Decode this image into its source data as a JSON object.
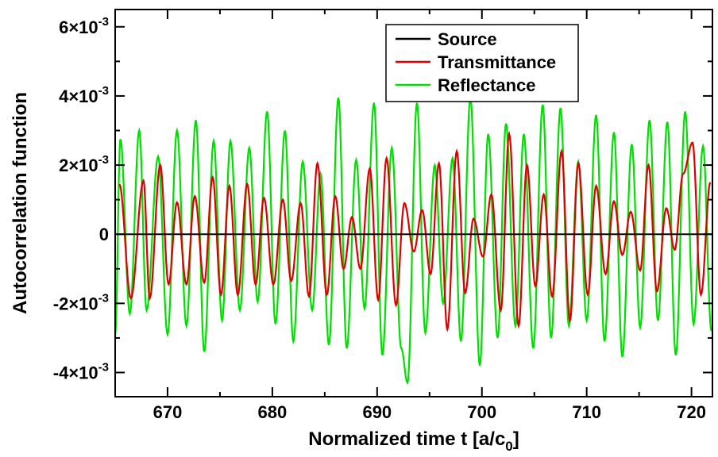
{
  "chart_data": {
    "type": "line",
    "title": "",
    "xlabel_main": "Normalized time t [a/c",
    "xlabel_sub": "0",
    "xlabel_close": "]",
    "ylabel": "Autocorrelation function",
    "xlim": [
      665,
      722
    ],
    "ylim": [
      -0.0047,
      0.0065
    ],
    "x_ticks": [
      670,
      680,
      690,
      700,
      710,
      720
    ],
    "x_tick_labels": [
      "670",
      "680",
      "690",
      "700",
      "710",
      "720"
    ],
    "y_ticks": [
      -0.004,
      -0.002,
      0,
      0.002,
      0.004,
      0.006
    ],
    "y_tick_labels": [
      {
        "mant": "-4×10",
        "exp": "-3"
      },
      {
        "mant": "-2×10",
        "exp": "-3"
      },
      {
        "mant": "0",
        "exp": ""
      },
      {
        "mant": "2×10",
        "exp": "-3"
      },
      {
        "mant": "4×10",
        "exp": "-3"
      },
      {
        "mant": "6×10",
        "exp": "-3"
      }
    ],
    "legend_position": "top-right",
    "grid": false,
    "oscillation_period": 1.64,
    "series": [
      {
        "name": "Source",
        "color": "#000000",
        "peaks": [
          [
            665.0,
            0
          ]
        ]
      },
      {
        "name": "Transmittance",
        "color": "#dd0000",
        "peaks": [
          [
            665.4,
            0.00145
          ],
          [
            666.5,
            -0.00185
          ],
          [
            667.7,
            0.00155
          ],
          [
            668.3,
            -0.00185
          ],
          [
            669.3,
            0.002
          ],
          [
            670.1,
            -0.00145
          ],
          [
            670.9,
            0.00092
          ],
          [
            671.8,
            -0.00145
          ],
          [
            672.6,
            0.0011
          ],
          [
            673.5,
            -0.0014
          ],
          [
            674.3,
            0.00165
          ],
          [
            675.1,
            -0.00175
          ],
          [
            675.9,
            0.0014
          ],
          [
            676.7,
            -0.00175
          ],
          [
            677.6,
            0.00145
          ],
          [
            678.4,
            -0.00145
          ],
          [
            679.2,
            0.00105
          ],
          [
            680.1,
            -0.00145
          ],
          [
            681.0,
            0.001
          ],
          [
            681.8,
            -0.00135
          ],
          [
            682.7,
            0.0009
          ],
          [
            683.5,
            -0.0018
          ],
          [
            684.3,
            0.00205
          ],
          [
            685.2,
            -0.00175
          ],
          [
            686.0,
            0.0011
          ],
          [
            686.8,
            -0.001
          ],
          [
            687.6,
            0.0005
          ],
          [
            688.4,
            -0.001
          ],
          [
            689.3,
            0.0019
          ],
          [
            690.1,
            -0.0019
          ],
          [
            690.9,
            0.0022
          ],
          [
            691.8,
            -0.00205
          ],
          [
            692.6,
            0.0009
          ],
          [
            693.5,
            -0.0005
          ],
          [
            694.3,
            0.0007
          ],
          [
            695.1,
            -0.00115
          ],
          [
            695.9,
            0.00205
          ],
          [
            696.7,
            -0.00275
          ],
          [
            697.6,
            0.0024
          ],
          [
            698.4,
            -0.0017
          ],
          [
            699.2,
            0.00045
          ],
          [
            700.1,
            -0.00065
          ],
          [
            700.9,
            0.00115
          ],
          [
            701.8,
            -0.0022
          ],
          [
            702.6,
            0.0029
          ],
          [
            703.5,
            -0.00265
          ],
          [
            704.3,
            0.002
          ],
          [
            705.1,
            -0.0015
          ],
          [
            705.9,
            0.00115
          ],
          [
            706.7,
            -0.0018
          ],
          [
            707.6,
            0.0024
          ],
          [
            708.4,
            -0.0025
          ],
          [
            709.2,
            0.00205
          ],
          [
            710.1,
            -0.00175
          ],
          [
            710.9,
            0.0014
          ],
          [
            711.8,
            -0.00115
          ],
          [
            712.6,
            0.00095
          ],
          [
            713.4,
            -0.0006
          ],
          [
            714.2,
            0.00065
          ],
          [
            715.1,
            -0.00105
          ],
          [
            715.9,
            0.002
          ],
          [
            716.7,
            -0.00165
          ],
          [
            717.6,
            0.00075
          ],
          [
            718.4,
            -0.00045
          ],
          [
            719.2,
            0.00175
          ],
          [
            720.1,
            0.00265
          ],
          [
            720.9,
            -0.00175
          ],
          [
            721.8,
            0.0015
          ]
        ]
      },
      {
        "name": "Reflectance",
        "color": "#00e000",
        "peaks": [
          [
            665.0,
            -0.0029
          ],
          [
            665.5,
            0.00275
          ],
          [
            666.4,
            -0.0023
          ],
          [
            667.3,
            0.003
          ],
          [
            668.0,
            -0.0022
          ],
          [
            669.1,
            0.00225
          ],
          [
            670.0,
            -0.0029
          ],
          [
            670.9,
            0.003
          ],
          [
            671.8,
            -0.00265
          ],
          [
            672.7,
            0.0033
          ],
          [
            673.5,
            -0.0034
          ],
          [
            674.4,
            0.0027
          ],
          [
            675.2,
            -0.0025
          ],
          [
            676.0,
            0.0027
          ],
          [
            676.9,
            -0.0022
          ],
          [
            677.8,
            0.0025
          ],
          [
            678.6,
            -0.00195
          ],
          [
            679.5,
            0.00355
          ],
          [
            680.3,
            -0.0026
          ],
          [
            681.2,
            0.003
          ],
          [
            682.0,
            -0.0031
          ],
          [
            682.9,
            0.0021
          ],
          [
            683.8,
            -0.0022
          ],
          [
            684.6,
            0.00175
          ],
          [
            685.4,
            -0.0032
          ],
          [
            686.3,
            0.00395
          ],
          [
            687.1,
            -0.0033
          ],
          [
            688.0,
            0.00215
          ],
          [
            688.8,
            -0.00215
          ],
          [
            689.7,
            0.0038
          ],
          [
            690.5,
            -0.0035
          ],
          [
            691.4,
            0.0025
          ],
          [
            692.3,
            -0.0033
          ],
          [
            692.9,
            -0.0043
          ],
          [
            693.8,
            0.0038
          ],
          [
            694.6,
            -0.00285
          ],
          [
            695.5,
            0.002
          ],
          [
            696.3,
            -0.002
          ],
          [
            697.2,
            0.0022
          ],
          [
            698.0,
            -0.0031
          ],
          [
            698.9,
            0.00395
          ],
          [
            699.8,
            -0.0038
          ],
          [
            700.6,
            0.0029
          ],
          [
            701.5,
            -0.003
          ],
          [
            702.3,
            0.0032
          ],
          [
            703.2,
            -0.00265
          ],
          [
            704.0,
            0.0029
          ],
          [
            704.9,
            -0.0033
          ],
          [
            705.8,
            0.00375
          ],
          [
            706.6,
            -0.003
          ],
          [
            707.5,
            0.00365
          ],
          [
            708.3,
            -0.00265
          ],
          [
            709.2,
            0.0021
          ],
          [
            710.0,
            -0.0025
          ],
          [
            710.9,
            0.00345
          ],
          [
            711.7,
            -0.0031
          ],
          [
            712.6,
            0.00295
          ],
          [
            713.4,
            -0.00355
          ],
          [
            714.3,
            0.0026
          ],
          [
            715.1,
            -0.0027
          ],
          [
            716.0,
            0.0033
          ],
          [
            716.8,
            -0.0025
          ],
          [
            717.7,
            0.00325
          ],
          [
            718.5,
            -0.0035
          ],
          [
            719.4,
            0.00355
          ],
          [
            720.2,
            -0.0026
          ],
          [
            721.1,
            0.00255
          ],
          [
            721.9,
            -0.0028
          ]
        ]
      }
    ]
  }
}
